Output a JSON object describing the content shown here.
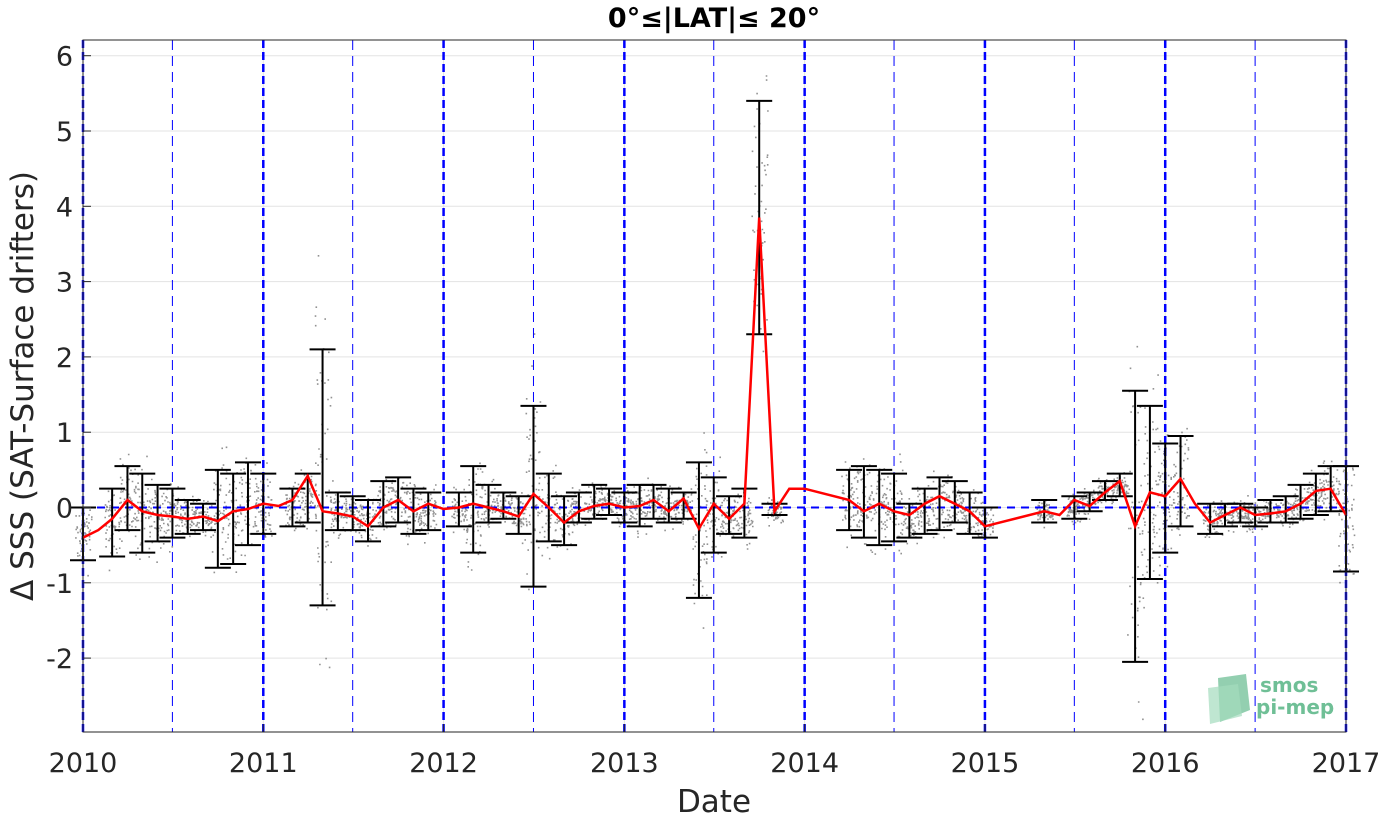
{
  "chart_data": {
    "type": "line",
    "title": "0°≤|LAT|≤ 20°",
    "xlabel": "Date",
    "ylabel": "Δ SSS (SAT-Surface drifters)",
    "xlim": [
      "2010-01-01",
      "2017-01-01"
    ],
    "ylim": [
      -3,
      6.2
    ],
    "x_ticks": [
      "2010",
      "2011",
      "2012",
      "2013",
      "2014",
      "2015",
      "2016",
      "2017"
    ],
    "y_ticks": [
      -2,
      -1,
      0,
      1,
      2,
      3,
      4,
      5,
      6
    ],
    "grid": true,
    "series": [
      {
        "marker": "line",
        "color": "#ff0000",
        "points": [
          [
            "2010-01-01",
            -0.4
          ],
          [
            "2010-02-01",
            -0.3
          ],
          [
            "2010-03-01",
            -0.15
          ],
          [
            "2010-04-01",
            0.1
          ],
          [
            "2010-05-01",
            -0.05
          ],
          [
            "2010-06-01",
            -0.1
          ],
          [
            "2010-07-01",
            -0.12
          ],
          [
            "2010-08-01",
            -0.15
          ],
          [
            "2010-09-01",
            -0.12
          ],
          [
            "2010-10-01",
            -0.18
          ],
          [
            "2010-11-01",
            -0.05
          ],
          [
            "2010-12-01",
            -0.02
          ],
          [
            "2011-01-01",
            0.05
          ],
          [
            "2011-02-01",
            0.02
          ],
          [
            "2011-03-01",
            0.1
          ],
          [
            "2011-04-01",
            0.42
          ],
          [
            "2011-05-01",
            -0.05
          ],
          [
            "2011-06-01",
            -0.08
          ],
          [
            "2011-07-01",
            -0.12
          ],
          [
            "2011-08-01",
            -0.25
          ],
          [
            "2011-09-01",
            0.0
          ],
          [
            "2011-10-01",
            0.1
          ],
          [
            "2011-11-01",
            -0.05
          ],
          [
            "2011-12-01",
            0.05
          ],
          [
            "2012-01-01",
            -0.02
          ],
          [
            "2012-02-01",
            0.0
          ],
          [
            "2012-03-01",
            0.05
          ],
          [
            "2012-04-01",
            0.0
          ],
          [
            "2012-05-01",
            -0.05
          ],
          [
            "2012-06-01",
            -0.12
          ],
          [
            "2012-07-01",
            0.18
          ],
          [
            "2012-08-01",
            0.0
          ],
          [
            "2012-09-01",
            -0.2
          ],
          [
            "2012-10-01",
            -0.05
          ],
          [
            "2012-11-01",
            0.02
          ],
          [
            "2012-12-01",
            0.05
          ],
          [
            "2013-01-01",
            0.0
          ],
          [
            "2013-02-01",
            0.02
          ],
          [
            "2013-03-01",
            0.1
          ],
          [
            "2013-04-01",
            -0.05
          ],
          [
            "2013-05-01",
            0.12
          ],
          [
            "2013-06-01",
            -0.28
          ],
          [
            "2013-07-01",
            0.05
          ],
          [
            "2013-08-01",
            -0.15
          ],
          [
            "2013-09-01",
            0.05
          ],
          [
            "2013-10-01",
            3.85
          ],
          [
            "2013-11-01",
            -0.05
          ],
          [
            "2013-12-01",
            0.25
          ],
          [
            "2014-01-01",
            0.25
          ],
          [
            "2014-04-01",
            0.1
          ],
          [
            "2014-05-01",
            -0.05
          ],
          [
            "2014-06-01",
            0.05
          ],
          [
            "2014-07-01",
            -0.05
          ],
          [
            "2014-08-01",
            -0.1
          ],
          [
            "2014-09-01",
            0.05
          ],
          [
            "2014-10-01",
            0.15
          ],
          [
            "2014-11-01",
            0.05
          ],
          [
            "2014-12-01",
            -0.05
          ],
          [
            "2015-01-01",
            -0.25
          ],
          [
            "2015-05-01",
            -0.05
          ],
          [
            "2015-06-01",
            -0.1
          ],
          [
            "2015-07-01",
            0.1
          ],
          [
            "2015-08-01",
            0.02
          ],
          [
            "2015-09-01",
            0.2
          ],
          [
            "2015-10-01",
            0.35
          ],
          [
            "2015-11-01",
            -0.25
          ],
          [
            "2015-12-01",
            0.2
          ],
          [
            "2016-01-01",
            0.15
          ],
          [
            "2016-02-01",
            0.38
          ],
          [
            "2016-03-01",
            0.05
          ],
          [
            "2016-04-01",
            -0.2
          ],
          [
            "2016-05-01",
            -0.1
          ],
          [
            "2016-06-01",
            0.0
          ],
          [
            "2016-07-01",
            -0.1
          ],
          [
            "2016-08-01",
            -0.08
          ],
          [
            "2016-09-01",
            -0.05
          ],
          [
            "2016-10-01",
            0.05
          ],
          [
            "2016-11-01",
            0.22
          ],
          [
            "2016-12-01",
            0.25
          ],
          [
            "2017-01-01",
            -0.1
          ]
        ]
      },
      {
        "marker": "errorbar",
        "color": "#000000",
        "bars": [
          [
            "2010-01-01",
            -0.7,
            0.0
          ],
          [
            "2010-03-01",
            -0.65,
            0.25
          ],
          [
            "2010-04-01",
            -0.3,
            0.55
          ],
          [
            "2010-05-01",
            -0.6,
            0.45
          ],
          [
            "2010-06-01",
            -0.45,
            0.3
          ],
          [
            "2010-07-01",
            -0.4,
            0.25
          ],
          [
            "2010-08-01",
            -0.35,
            0.1
          ],
          [
            "2010-09-01",
            -0.3,
            0.05
          ],
          [
            "2010-10-01",
            -0.8,
            0.5
          ],
          [
            "2010-11-01",
            -0.75,
            0.45
          ],
          [
            "2010-12-01",
            -0.5,
            0.6
          ],
          [
            "2011-01-01",
            -0.35,
            0.45
          ],
          [
            "2011-03-01",
            -0.25,
            0.25
          ],
          [
            "2011-04-01",
            -0.2,
            0.45
          ],
          [
            "2011-05-01",
            -1.3,
            2.1
          ],
          [
            "2011-06-01",
            -0.3,
            0.2
          ],
          [
            "2011-07-01",
            -0.3,
            0.15
          ],
          [
            "2011-08-01",
            -0.45,
            0.1
          ],
          [
            "2011-09-01",
            -0.25,
            0.35
          ],
          [
            "2011-10-01",
            -0.2,
            0.4
          ],
          [
            "2011-11-01",
            -0.35,
            0.25
          ],
          [
            "2011-12-01",
            -0.3,
            0.2
          ],
          [
            "2012-02-01",
            -0.25,
            0.2
          ],
          [
            "2012-03-01",
            -0.6,
            0.55
          ],
          [
            "2012-04-01",
            -0.2,
            0.3
          ],
          [
            "2012-05-01",
            -0.15,
            0.2
          ],
          [
            "2012-06-01",
            -0.35,
            0.15
          ],
          [
            "2012-07-01",
            -1.05,
            1.35
          ],
          [
            "2012-08-01",
            -0.45,
            0.45
          ],
          [
            "2012-09-01",
            -0.5,
            0.15
          ],
          [
            "2012-10-01",
            -0.2,
            0.2
          ],
          [
            "2012-11-01",
            -0.15,
            0.3
          ],
          [
            "2012-12-01",
            -0.1,
            0.25
          ],
          [
            "2013-01-01",
            -0.2,
            0.2
          ],
          [
            "2013-02-01",
            -0.25,
            0.3
          ],
          [
            "2013-03-01",
            -0.15,
            0.3
          ],
          [
            "2013-04-01",
            -0.2,
            0.25
          ],
          [
            "2013-05-01",
            -0.15,
            0.2
          ],
          [
            "2013-06-01",
            -1.2,
            0.6
          ],
          [
            "2013-07-01",
            -0.6,
            0.4
          ],
          [
            "2013-08-01",
            -0.35,
            0.15
          ],
          [
            "2013-09-01",
            -0.4,
            0.25
          ],
          [
            "2013-10-01",
            2.3,
            5.4
          ],
          [
            "2013-11-01",
            -0.1,
            0.05
          ],
          [
            "2014-04-01",
            -0.3,
            0.5
          ],
          [
            "2014-05-01",
            -0.4,
            0.55
          ],
          [
            "2014-06-01",
            -0.5,
            0.5
          ],
          [
            "2014-07-01",
            -0.45,
            0.45
          ],
          [
            "2014-08-01",
            -0.4,
            0.05
          ],
          [
            "2014-09-01",
            -0.35,
            0.25
          ],
          [
            "2014-10-01",
            -0.3,
            0.4
          ],
          [
            "2014-11-01",
            -0.2,
            0.35
          ],
          [
            "2014-12-01",
            -0.35,
            0.2
          ],
          [
            "2015-01-01",
            -0.4,
            0.0
          ],
          [
            "2015-05-01",
            -0.2,
            0.1
          ],
          [
            "2015-07-01",
            -0.15,
            0.15
          ],
          [
            "2015-08-01",
            -0.05,
            0.2
          ],
          [
            "2015-09-01",
            0.1,
            0.35
          ],
          [
            "2015-10-01",
            0.15,
            0.45
          ],
          [
            "2015-11-01",
            -2.05,
            1.55
          ],
          [
            "2015-12-01",
            -0.95,
            1.35
          ],
          [
            "2016-01-01",
            -0.6,
            0.85
          ],
          [
            "2016-02-01",
            -0.25,
            0.95
          ],
          [
            "2016-04-01",
            -0.35,
            0.05
          ],
          [
            "2016-05-01",
            -0.25,
            0.05
          ],
          [
            "2016-06-01",
            -0.2,
            0.05
          ],
          [
            "2016-07-01",
            -0.25,
            0.0
          ],
          [
            "2016-08-01",
            -0.2,
            0.1
          ],
          [
            "2016-09-01",
            -0.2,
            0.15
          ],
          [
            "2016-10-01",
            -0.15,
            0.3
          ],
          [
            "2016-11-01",
            -0.1,
            0.45
          ],
          [
            "2016-12-01",
            -0.05,
            0.55
          ],
          [
            "2017-01-01",
            -0.85,
            0.55
          ]
        ]
      }
    ],
    "reference_lines": {
      "zero_line": 0,
      "year_markers": [
        "2010-01-01",
        "2011-01-01",
        "2012-01-01",
        "2013-01-01",
        "2014-01-01",
        "2015-01-01",
        "2016-01-01",
        "2017-01-01"
      ],
      "half_year_markers": [
        "2010-07-01",
        "2011-07-01",
        "2012-07-01",
        "2013-07-01",
        "2014-07-01",
        "2015-07-01",
        "2016-07-01"
      ],
      "color": "#0000ff"
    },
    "scatter_cloud_color": "#7f7f7f"
  },
  "logo": {
    "line1": "smos",
    "line2": "pi-mep",
    "color": "#6fbf96"
  }
}
